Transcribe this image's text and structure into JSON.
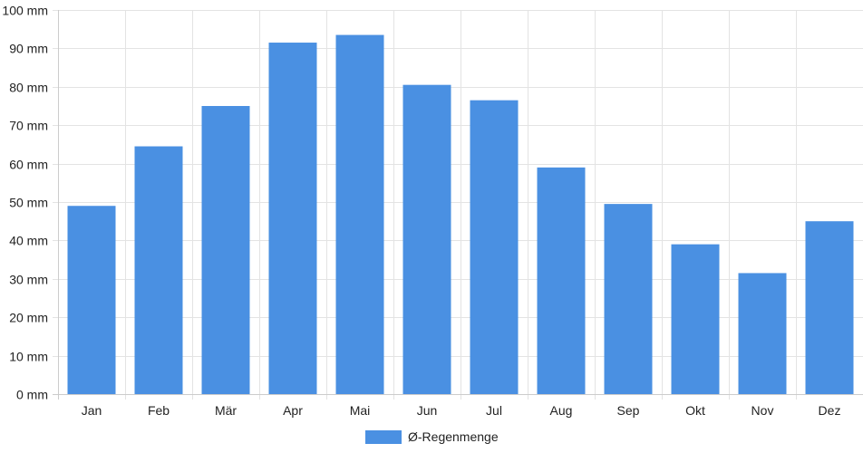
{
  "chart_data": {
    "type": "bar",
    "categories": [
      "Jan",
      "Feb",
      "Mär",
      "Apr",
      "Mai",
      "Jun",
      "Jul",
      "Aug",
      "Sep",
      "Okt",
      "Nov",
      "Dez"
    ],
    "series": [
      {
        "name": "Ø-Regenmenge",
        "color": "#4a90e2",
        "values": [
          49,
          64.5,
          75,
          91.5,
          93.5,
          80.5,
          76.5,
          59,
          49.5,
          39,
          31.5,
          45
        ]
      }
    ],
    "ylim": [
      0,
      100
    ],
    "ytick_labels": [
      "0 mm",
      "10 mm",
      "20 mm",
      "30 mm",
      "40 mm",
      "50 mm",
      "60 mm",
      "70 mm",
      "80 mm",
      "90 mm",
      "100 mm"
    ],
    "grid": true,
    "legend_position": "bottom-center"
  }
}
